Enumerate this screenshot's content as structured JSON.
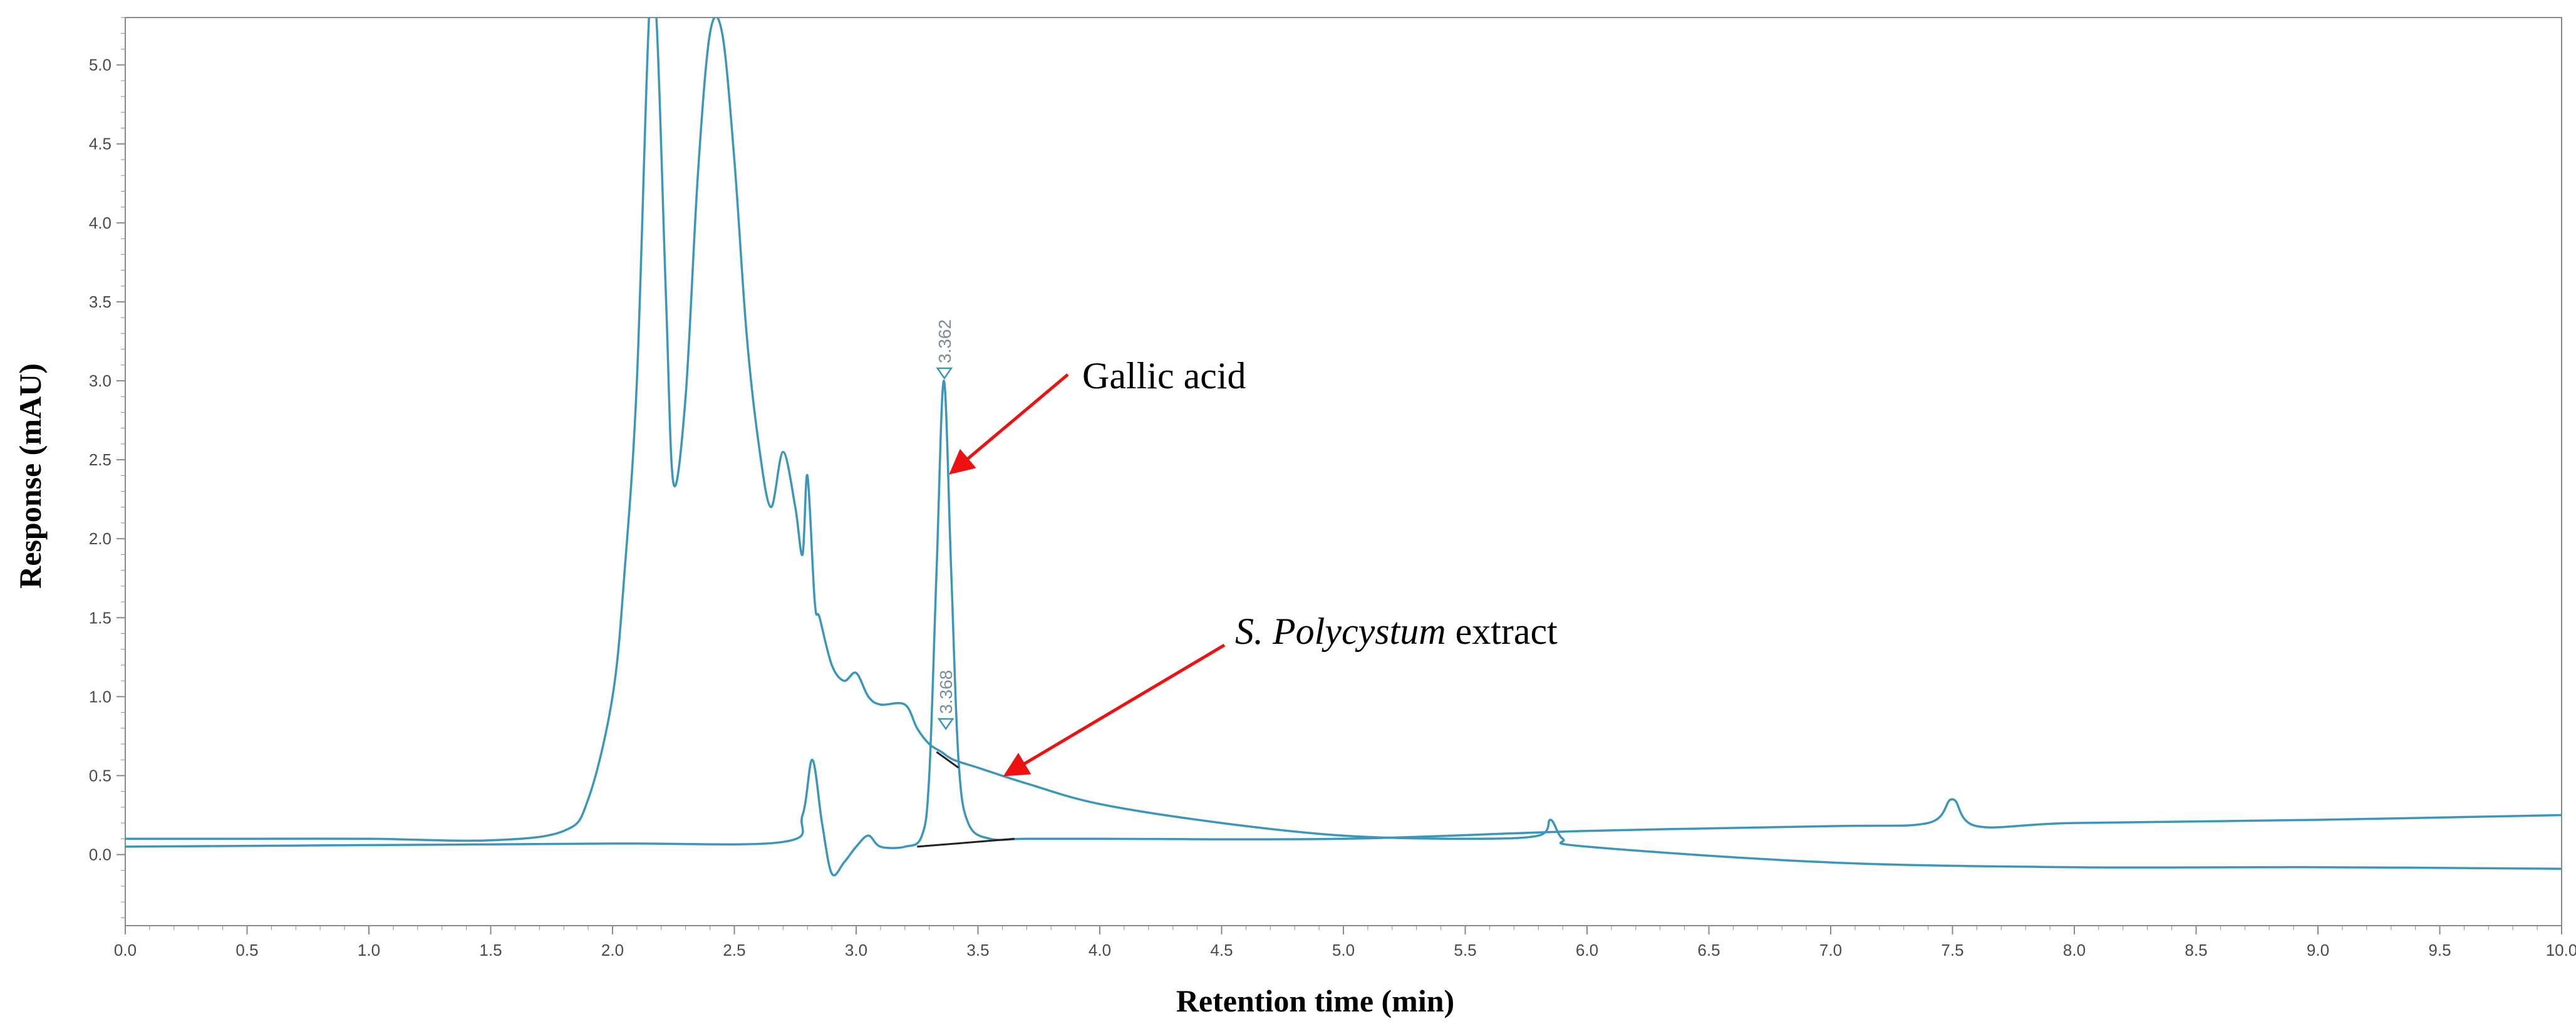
{
  "chart_data": {
    "type": "line",
    "title": "",
    "xlabel": "Retention time (min)",
    "ylabel": "Response (mAU)",
    "xlim": [
      0.0,
      10.0
    ],
    "ylim": [
      -0.45,
      5.3
    ],
    "x_ticks": [
      "0.0",
      "0.5",
      "1.0",
      "1.5",
      "2.0",
      "2.5",
      "3.0",
      "3.5",
      "4.0",
      "4.5",
      "5.0",
      "5.5",
      "6.0",
      "6.5",
      "7.0",
      "7.5",
      "8.0",
      "8.5",
      "9.0",
      "9.5",
      "10.0"
    ],
    "y_ticks": [
      "0.0",
      "0.5",
      "1.0",
      "1.5",
      "2.0",
      "2.5",
      "3.0",
      "3.5",
      "4.0",
      "4.5",
      "5.0"
    ],
    "grid": false,
    "series": [
      {
        "name": "S. Polycystum extract",
        "x": [
          0.0,
          0.5,
          1.0,
          1.5,
          1.8,
          1.9,
          2.0,
          2.05,
          2.1,
          2.15,
          2.18,
          2.22,
          2.25,
          2.3,
          2.35,
          2.4,
          2.45,
          2.5,
          2.55,
          2.6,
          2.65,
          2.7,
          2.75,
          2.78,
          2.8,
          2.83,
          2.85,
          2.9,
          2.95,
          3.0,
          3.05,
          3.1,
          3.2,
          3.25,
          3.3,
          3.35,
          3.4,
          3.5,
          3.7,
          4.0,
          4.5,
          5.0,
          5.5,
          5.8,
          5.85,
          5.9,
          6.0,
          7.0,
          8.0,
          9.0,
          10.0
        ],
        "y": [
          0.1,
          0.1,
          0.1,
          0.09,
          0.15,
          0.35,
          1.0,
          1.8,
          3.0,
          5.3,
          5.3,
          3.5,
          2.35,
          2.9,
          4.3,
          5.2,
          5.2,
          4.4,
          3.3,
          2.6,
          2.2,
          2.55,
          2.2,
          1.9,
          2.4,
          1.6,
          1.5,
          1.2,
          1.1,
          1.15,
          1.0,
          0.95,
          0.95,
          0.8,
          0.7,
          0.65,
          0.6,
          0.55,
          0.45,
          0.32,
          0.2,
          0.12,
          0.1,
          0.12,
          0.22,
          0.1,
          0.05,
          -0.05,
          -0.08,
          -0.08,
          -0.09
        ]
      },
      {
        "name": "Gallic acid",
        "x": [
          0.0,
          1.0,
          2.0,
          2.7,
          2.78,
          2.82,
          2.86,
          2.9,
          2.95,
          3.0,
          3.05,
          3.1,
          3.2,
          3.27,
          3.3,
          3.33,
          3.36,
          3.39,
          3.42,
          3.46,
          3.55,
          3.7,
          4.0,
          5.0,
          6.0,
          7.0,
          7.4,
          7.5,
          7.6,
          8.0,
          9.0,
          10.0
        ],
        "y": [
          0.05,
          0.06,
          0.07,
          0.08,
          0.25,
          0.6,
          0.2,
          -0.12,
          -0.05,
          0.05,
          0.12,
          0.05,
          0.05,
          0.12,
          0.5,
          1.8,
          3.0,
          1.8,
          0.6,
          0.2,
          0.1,
          0.1,
          0.1,
          0.1,
          0.15,
          0.18,
          0.2,
          0.35,
          0.18,
          0.2,
          0.22,
          0.25
        ]
      }
    ],
    "peak_labels": [
      {
        "x": 3.362,
        "y": 3.0,
        "label": "3.362"
      },
      {
        "x": 3.368,
        "y": 0.78,
        "label": "3.368"
      }
    ],
    "annotations": [
      {
        "text": "Gallic acid",
        "arrow_to_x": 3.38,
        "arrow_to_y": 2.4
      },
      {
        "text_italic": "S. Polycystum",
        "text_rest": " extract",
        "arrow_to_x": 3.6,
        "arrow_to_y": 0.5
      }
    ],
    "colors": {
      "trace": "#3a96ba",
      "baseline": "#222222",
      "arrow": "#ee1111",
      "axis": "#8a8a8a"
    }
  }
}
